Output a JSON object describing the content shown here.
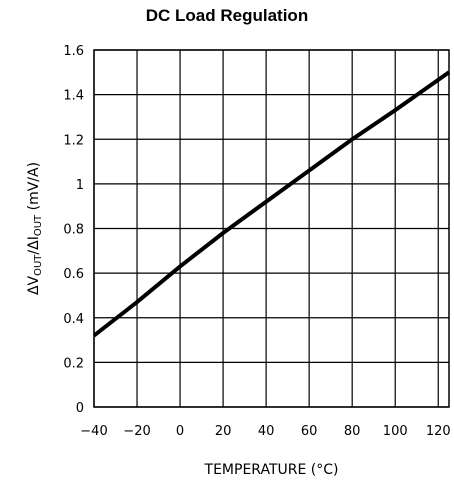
{
  "chart_data": {
    "type": "line",
    "title": "DC Load Regulation",
    "xlabel": "TEMPERATURE (°C)",
    "ylabel_parts": [
      "ΔV",
      "OUT",
      "/ΔI",
      "OUT",
      "  (mV/A)"
    ],
    "xlim": [
      -40,
      125
    ],
    "ylim": [
      0,
      1.6
    ],
    "x_ticks": [
      "-40",
      "-20",
      "0",
      "20",
      "40",
      "60",
      "80",
      "100",
      "120"
    ],
    "y_ticks": [
      "0",
      "0.2",
      "0.4",
      "0.6",
      "0.8",
      "1",
      "1.2",
      "1.4",
      "1.6"
    ],
    "grid": true,
    "series": [
      {
        "x": [
          -40,
          -20,
          0,
          20,
          40,
          60,
          80,
          100,
          125
        ],
        "y": [
          0.32,
          0.47,
          0.63,
          0.78,
          0.92,
          1.06,
          1.2,
          1.33,
          1.5
        ]
      }
    ]
  }
}
